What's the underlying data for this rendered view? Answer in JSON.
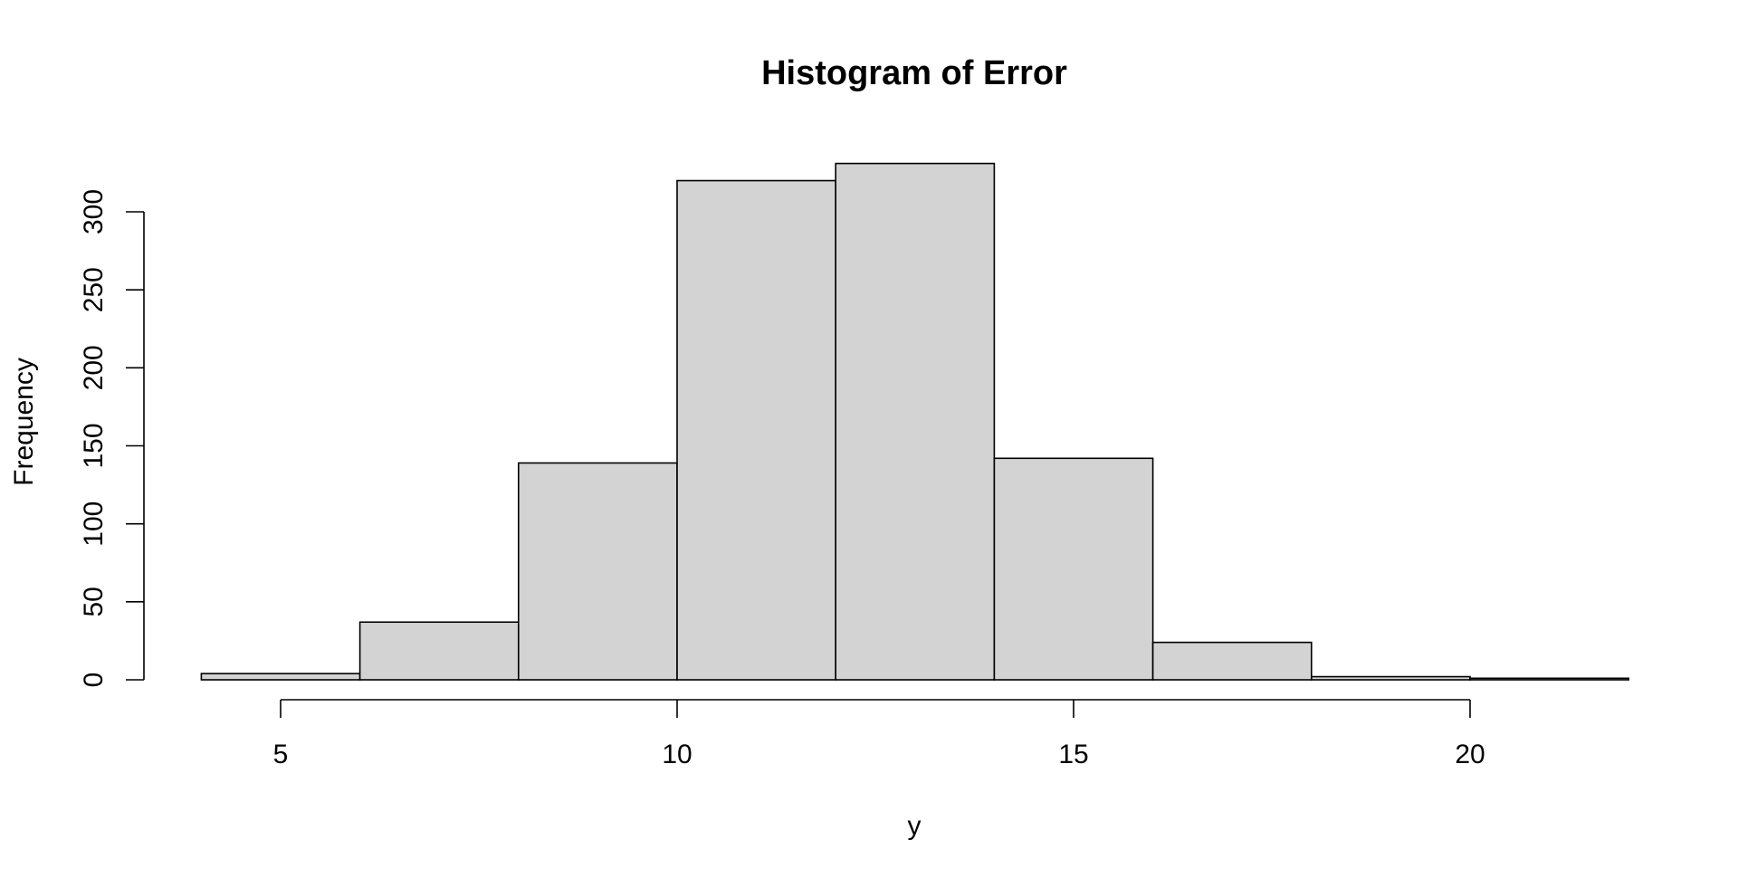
{
  "chart_data": {
    "type": "bar",
    "title": "Histogram of Error",
    "xlabel": "y",
    "ylabel": "Frequency",
    "bin_edges": [
      4,
      6,
      8,
      10,
      12,
      14,
      16,
      18,
      20,
      22
    ],
    "values": [
      4,
      37,
      139,
      320,
      331,
      142,
      24,
      2,
      1
    ],
    "x_ticks": [
      5,
      10,
      15,
      20
    ],
    "y_ticks": [
      0,
      50,
      100,
      150,
      200,
      250,
      300
    ],
    "xlim": [
      5,
      20
    ],
    "ylim": [
      0,
      300
    ],
    "bar_color": "#d3d3d3",
    "border_color": "#000000",
    "grid": false
  }
}
